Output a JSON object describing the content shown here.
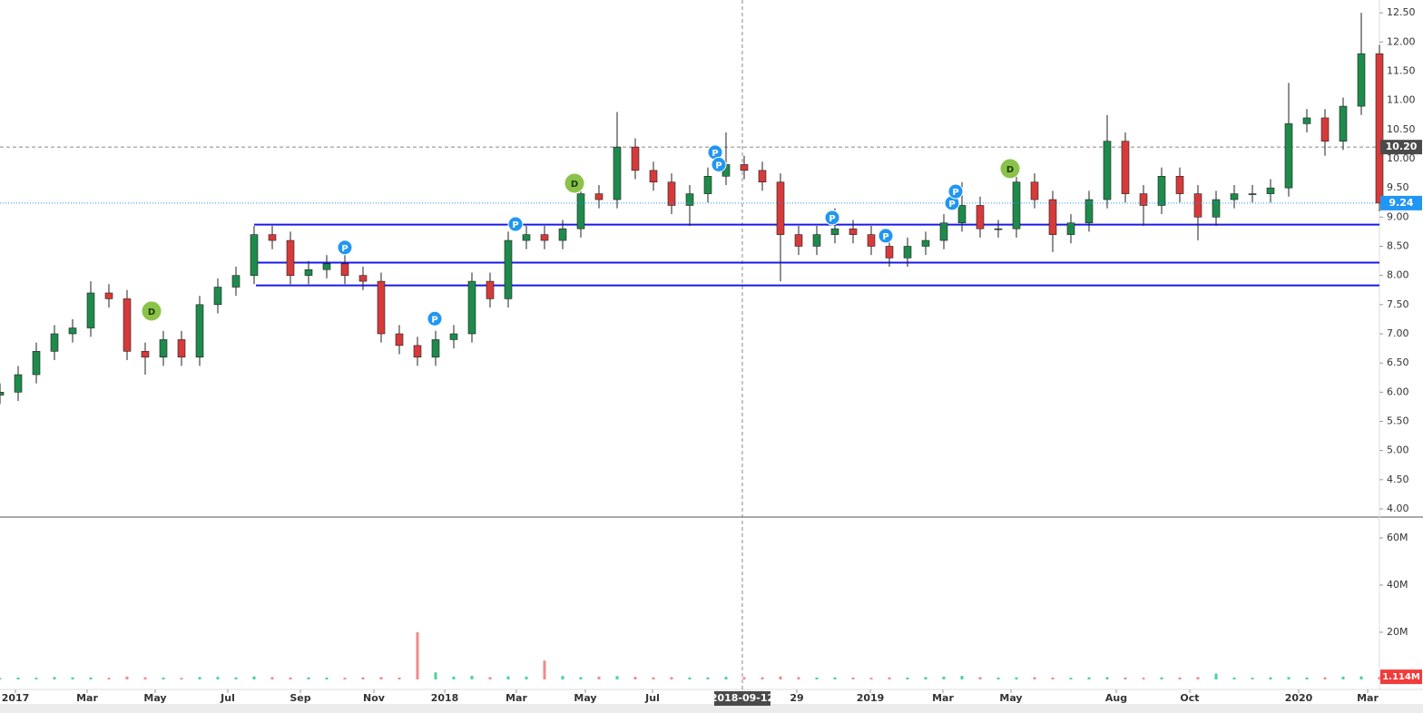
{
  "chart_data": {
    "type": "candlestick",
    "up_color": "#1e8a4c",
    "down_color": "#d63a3a",
    "level_color": "#1a1ae6",
    "d_color": "#8bc34a",
    "p_color": "#2196f3",
    "xlim": [
      0,
      76
    ],
    "ylim": [
      3.86,
      12.72
    ],
    "yticks": [
      {
        "value": 4,
        "label": "4.00"
      },
      {
        "value": 4.5,
        "label": "4.50"
      },
      {
        "value": 5,
        "label": "5.00"
      },
      {
        "value": 5.5,
        "label": "5.50"
      },
      {
        "value": 6,
        "label": "6.00"
      },
      {
        "value": 6.5,
        "label": "6.50"
      },
      {
        "value": 7,
        "label": "7.00"
      },
      {
        "value": 7.5,
        "label": "7.50"
      },
      {
        "value": 8,
        "label": "8.00"
      },
      {
        "value": 8.5,
        "label": "8.50"
      },
      {
        "value": 9,
        "label": "9.00"
      },
      {
        "value": 9.5,
        "label": "9.50"
      },
      {
        "value": 10,
        "label": "10.00"
      },
      {
        "value": 10.5,
        "label": "10.50"
      },
      {
        "value": 11,
        "label": "11.00"
      },
      {
        "value": 11.5,
        "label": "11.50"
      },
      {
        "value": 12,
        "label": "12.00"
      },
      {
        "value": 12.5,
        "label": "12.50"
      }
    ],
    "xticks": [
      {
        "value": 0.85,
        "label": "2017"
      },
      {
        "value": 4.8,
        "label": "Mar"
      },
      {
        "value": 8.55,
        "label": "May"
      },
      {
        "value": 12.55,
        "label": "Jul"
      },
      {
        "value": 16.55,
        "label": "Sep"
      },
      {
        "value": 20.6,
        "label": "Nov"
      },
      {
        "value": 24.5,
        "label": "2018"
      },
      {
        "value": 28.45,
        "label": "Mar"
      },
      {
        "value": 32.25,
        "label": "May"
      },
      {
        "value": 35.95,
        "label": "Jul"
      },
      {
        "value": 43.9,
        "label": "29"
      },
      {
        "value": 47.95,
        "label": "2019"
      },
      {
        "value": 51.95,
        "label": "Mar"
      },
      {
        "value": 55.7,
        "label": "May"
      },
      {
        "value": 61.5,
        "label": "Aug"
      },
      {
        "value": 65.55,
        "label": "Oct"
      },
      {
        "value": 71.55,
        "label": "2020"
      },
      {
        "value": 75.35,
        "label": "Mar"
      }
    ],
    "crosshair": {
      "x": 40.9,
      "x_label": "2018-09-12",
      "price": {
        "value": 10.2,
        "label": "10.20"
      }
    },
    "ohlc": [
      [
        5.95,
        6.15,
        5.8,
        6.0
      ],
      [
        6.0,
        6.45,
        5.85,
        6.3
      ],
      [
        6.3,
        6.85,
        6.15,
        6.7
      ],
      [
        6.7,
        7.15,
        6.55,
        7.0
      ],
      [
        7.0,
        7.25,
        6.85,
        7.1
      ],
      [
        7.1,
        7.9,
        6.95,
        7.7
      ],
      [
        7.7,
        7.85,
        7.45,
        7.6
      ],
      [
        7.6,
        7.75,
        6.55,
        6.7
      ],
      [
        6.7,
        6.85,
        6.3,
        6.6
      ],
      [
        6.6,
        7.05,
        6.45,
        6.9
      ],
      [
        6.9,
        7.05,
        6.45,
        6.6
      ],
      [
        6.6,
        7.65,
        6.45,
        7.5
      ],
      [
        7.5,
        7.95,
        7.35,
        7.8
      ],
      [
        7.8,
        8.15,
        7.65,
        8.0
      ],
      [
        8.0,
        8.85,
        7.85,
        8.7
      ],
      [
        8.7,
        8.85,
        8.45,
        8.6
      ],
      [
        8.6,
        8.75,
        7.85,
        8.0
      ],
      [
        8.0,
        8.25,
        7.85,
        8.1
      ],
      [
        8.1,
        8.35,
        7.95,
        8.2
      ],
      [
        8.2,
        8.35,
        7.85,
        8.0
      ],
      [
        8.0,
        8.15,
        7.75,
        7.9
      ],
      [
        7.9,
        8.05,
        6.85,
        7.0
      ],
      [
        7.0,
        7.15,
        6.65,
        6.8
      ],
      [
        6.8,
        6.95,
        6.45,
        6.6
      ],
      [
        6.6,
        7.05,
        6.45,
        6.9
      ],
      [
        6.9,
        7.15,
        6.75,
        7.0
      ],
      [
        7.0,
        8.05,
        6.85,
        7.9
      ],
      [
        7.9,
        8.05,
        7.45,
        7.6
      ],
      [
        7.6,
        8.75,
        7.45,
        8.6
      ],
      [
        8.6,
        8.85,
        8.45,
        8.7
      ],
      [
        8.7,
        8.85,
        8.45,
        8.6
      ],
      [
        8.6,
        8.95,
        8.45,
        8.8
      ],
      [
        8.8,
        9.55,
        8.65,
        9.4
      ],
      [
        9.4,
        9.55,
        9.15,
        9.3
      ],
      [
        9.3,
        10.8,
        9.15,
        10.2
      ],
      [
        10.2,
        10.35,
        9.65,
        9.8
      ],
      [
        9.8,
        9.95,
        9.45,
        9.6
      ],
      [
        9.6,
        9.75,
        9.05,
        9.2
      ],
      [
        9.2,
        9.55,
        8.85,
        9.4
      ],
      [
        9.4,
        9.85,
        9.25,
        9.7
      ],
      [
        9.7,
        10.45,
        9.55,
        9.9
      ],
      [
        9.9,
        10.05,
        9.65,
        9.8
      ],
      [
        9.8,
        9.95,
        9.45,
        9.6
      ],
      [
        9.6,
        9.75,
        7.9,
        8.7
      ],
      [
        8.7,
        8.85,
        8.35,
        8.5
      ],
      [
        8.5,
        8.85,
        8.35,
        8.7
      ],
      [
        8.7,
        9.15,
        8.55,
        8.8
      ],
      [
        8.8,
        8.95,
        8.55,
        8.7
      ],
      [
        8.7,
        8.85,
        8.35,
        8.5
      ],
      [
        8.5,
        8.65,
        8.15,
        8.3
      ],
      [
        8.3,
        8.65,
        8.15,
        8.5
      ],
      [
        8.5,
        8.75,
        8.35,
        8.6
      ],
      [
        8.6,
        9.05,
        8.45,
        8.9
      ],
      [
        8.9,
        9.6,
        8.75,
        9.2
      ],
      [
        9.2,
        9.35,
        8.65,
        8.8
      ],
      [
        8.8,
        8.95,
        8.65,
        8.8
      ],
      [
        8.8,
        9.75,
        8.65,
        9.6
      ],
      [
        9.6,
        9.75,
        9.15,
        9.3
      ],
      [
        9.3,
        9.45,
        8.4,
        8.7
      ],
      [
        8.7,
        9.05,
        8.55,
        8.9
      ],
      [
        8.9,
        9.45,
        8.75,
        9.3
      ],
      [
        9.3,
        10.75,
        9.15,
        10.3
      ],
      [
        10.3,
        10.45,
        9.25,
        9.4
      ],
      [
        9.4,
        9.55,
        8.85,
        9.2
      ],
      [
        9.2,
        9.85,
        9.05,
        9.7
      ],
      [
        9.7,
        9.85,
        9.25,
        9.4
      ],
      [
        9.4,
        9.55,
        8.6,
        9.0
      ],
      [
        9.0,
        9.45,
        8.85,
        9.3
      ],
      [
        9.3,
        9.55,
        9.15,
        9.4
      ],
      [
        9.4,
        9.55,
        9.25,
        9.4
      ],
      [
        9.4,
        9.65,
        9.25,
        9.5
      ],
      [
        9.5,
        11.3,
        9.35,
        10.6
      ],
      [
        10.6,
        10.85,
        10.45,
        10.7
      ],
      [
        10.7,
        10.85,
        10.05,
        10.3
      ],
      [
        10.3,
        11.05,
        10.15,
        10.9
      ],
      [
        10.9,
        12.5,
        10.75,
        11.8
      ],
      [
        11.8,
        11.95,
        9.1,
        9.24
      ]
    ],
    "volumes": [
      0.6,
      0.8,
      0.7,
      1.0,
      0.9,
      0.8,
      0.7,
      1.2,
      0.9,
      0.8,
      0.7,
      1.0,
      1.1,
      0.9,
      1.3,
      1.0,
      0.8,
      0.9,
      0.8,
      0.7,
      0.9,
      1.0,
      0.8,
      20.0,
      3.0,
      1.2,
      1.5,
      1.0,
      1.3,
      1.2,
      8.0,
      1.5,
      1.0,
      1.2,
      1.4,
      1.1,
      0.9,
      1.0,
      0.8,
      0.9,
      1.1,
      1.0,
      0.9,
      1.3,
      1.0,
      0.8,
      0.9,
      0.8,
      0.7,
      0.9,
      0.8,
      1.0,
      1.2,
      1.5,
      1.0,
      0.8,
      0.9,
      1.0,
      0.8,
      0.7,
      0.9,
      1.0,
      0.8,
      0.7,
      0.9,
      0.8,
      1.0,
      2.5,
      0.8,
      0.7,
      0.9,
      1.0,
      0.8,
      0.9,
      1.2,
      1.3,
      1.114
    ],
    "volume_label": "1.114M",
    "vlim": [
      0,
      68.85
    ],
    "vticks": [
      {
        "value": 20,
        "label": "20M"
      },
      {
        "value": 40,
        "label": "40M"
      },
      {
        "value": 60,
        "label": "60M"
      }
    ],
    "levels": [
      {
        "value": 8.87,
        "from": 14
      },
      {
        "value": 8.22,
        "from": 14
      },
      {
        "value": 7.83,
        "from": 14.1
      }
    ],
    "markers": [
      {
        "label": "D",
        "x": 8.35,
        "y": 7.39
      },
      {
        "label": "D",
        "x": 31.65,
        "y": 9.58
      },
      {
        "label": "D",
        "x": 55.65,
        "y": 9.83
      },
      {
        "label": "P",
        "x": 19,
        "y": 8.48
      },
      {
        "label": "P",
        "x": 23.95,
        "y": 7.26
      },
      {
        "label": "P",
        "x": 28.4,
        "y": 8.88
      },
      {
        "label": "P",
        "x": 39.4,
        "y": 10.11
      },
      {
        "label": "P",
        "x": 39.6,
        "y": 9.9
      },
      {
        "label": "P",
        "x": 45.85,
        "y": 8.99
      },
      {
        "label": "P",
        "x": 48.8,
        "y": 8.68
      },
      {
        "label": "P",
        "x": 52.45,
        "y": 9.24
      },
      {
        "label": "P",
        "x": 52.65,
        "y": 9.44
      }
    ]
  }
}
